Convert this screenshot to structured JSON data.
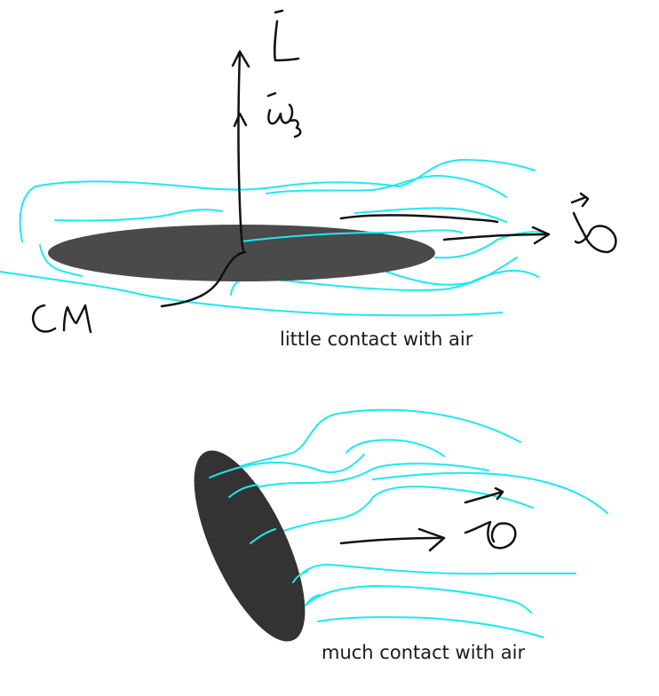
{
  "captions": {
    "top": "little contact with air",
    "bottom": "much contact with air"
  },
  "colors": {
    "airflow": "#1ee8f0",
    "disc_flat": "#4a4a4a",
    "disc_tilted": "#333333",
    "ink": "#111111",
    "text": "#1a1a1a",
    "background": "#ffffff"
  },
  "handwritten_labels": [
    "L",
    "ω3",
    "v",
    "CM",
    "v"
  ],
  "icons": [
    "angular-momentum-arrow",
    "velocity-arrow",
    "airflow-streamlines"
  ]
}
